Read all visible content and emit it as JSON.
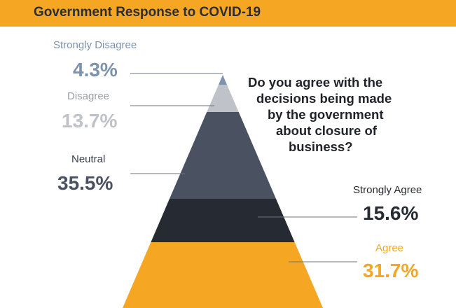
{
  "header": {
    "title": "Government Response to COVID-19"
  },
  "question": {
    "lines": [
      "Do you agree with the",
      "decisions being made",
      "by the government",
      "about closure of",
      "business?"
    ]
  },
  "colors": {
    "strongly_disagree": "#7d93ad",
    "disagree": "#bfc3c9",
    "neutral": "#4a5161",
    "strongly_agree": "#262a32",
    "agree": "#f5a623",
    "header": "#f5a623"
  },
  "chart_data": {
    "type": "pyramid",
    "title": "Government Response to COVID-19",
    "segments": [
      {
        "label": "Strongly Disagree",
        "value": 4.3,
        "display": "4.3%"
      },
      {
        "label": "Disagree",
        "value": 13.7,
        "display": "13.7%"
      },
      {
        "label": "Neutral",
        "value": 35.5,
        "display": "35.5%"
      },
      {
        "label": "Strongly Agree",
        "value": 15.6,
        "display": "15.6%"
      },
      {
        "label": "Agree",
        "value": 31.7,
        "display": "31.7%"
      }
    ]
  }
}
